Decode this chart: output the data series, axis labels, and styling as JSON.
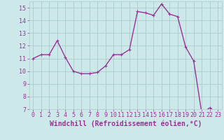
{
  "x": [
    0,
    1,
    2,
    3,
    4,
    5,
    6,
    7,
    8,
    9,
    10,
    11,
    12,
    13,
    14,
    15,
    16,
    17,
    18,
    19,
    20,
    21,
    22,
    23
  ],
  "y": [
    11.0,
    11.3,
    11.3,
    12.4,
    11.1,
    10.0,
    9.8,
    9.8,
    9.9,
    10.4,
    11.3,
    11.3,
    11.7,
    14.7,
    14.6,
    14.4,
    15.3,
    14.5,
    14.3,
    11.9,
    10.8,
    6.7,
    7.1,
    6.7
  ],
  "line_color": "#993399",
  "marker": "+",
  "marker_size": 3,
  "background_color": "#cce8e8",
  "grid_color": "#aacccc",
  "xlabel": "Windchill (Refroidissement éolien,°C)",
  "xlabel_color": "#993399",
  "tick_color": "#993399",
  "ylim": [
    7,
    15.5
  ],
  "xlim": [
    -0.5,
    23.5
  ],
  "yticks": [
    7,
    8,
    9,
    10,
    11,
    12,
    13,
    14,
    15
  ],
  "xticks": [
    0,
    1,
    2,
    3,
    4,
    5,
    6,
    7,
    8,
    9,
    10,
    11,
    12,
    13,
    14,
    15,
    16,
    17,
    18,
    19,
    20,
    21,
    22,
    23
  ],
  "xtick_labels": [
    "0",
    "1",
    "2",
    "3",
    "4",
    "5",
    "6",
    "7",
    "8",
    "9",
    "10",
    "11",
    "12",
    "13",
    "14",
    "15",
    "16",
    "17",
    "18",
    "19",
    "20",
    "21",
    "22",
    "23"
  ],
  "ytick_labels": [
    "7",
    "8",
    "9",
    "10",
    "11",
    "12",
    "13",
    "14",
    "15"
  ],
  "font_size": 6,
  "xlabel_font_size": 7,
  "line_width": 1.0
}
